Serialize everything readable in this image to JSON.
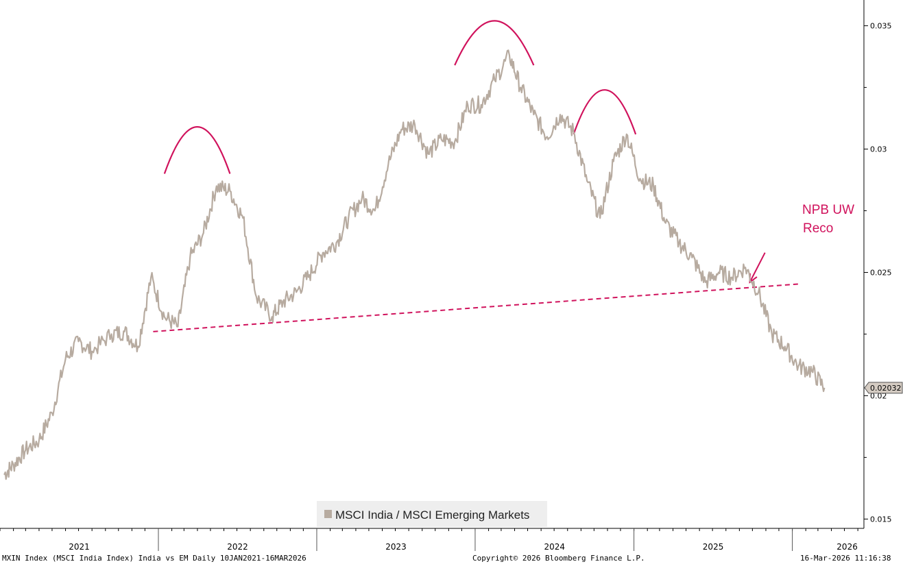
{
  "chart_data": {
    "type": "line",
    "series": [
      {
        "name": "MSCI India / MSCI Emerging Markets",
        "x": [
          "2021-01-10",
          "2021-02-01",
          "2021-03-01",
          "2021-04-01",
          "2021-05-01",
          "2021-06-01",
          "2021-07-01",
          "2021-08-01",
          "2021-09-15",
          "2021-10-15",
          "2021-11-15",
          "2021-12-15",
          "2022-01-15",
          "2022-02-15",
          "2022-03-15",
          "2022-04-15",
          "2022-05-15",
          "2022-06-15",
          "2022-07-15",
          "2022-08-15",
          "2022-09-20",
          "2022-10-15",
          "2022-11-15",
          "2022-12-15",
          "2023-01-15",
          "2023-02-15",
          "2023-03-15",
          "2023-04-15",
          "2023-05-15",
          "2023-06-15",
          "2023-07-15",
          "2023-08-15",
          "2023-09-15",
          "2023-10-15",
          "2023-11-15",
          "2023-12-15",
          "2024-01-15",
          "2024-02-15",
          "2024-03-20",
          "2024-04-15",
          "2024-05-15",
          "2024-06-15",
          "2024-07-15",
          "2024-08-15",
          "2024-09-15",
          "2024-10-15",
          "2024-11-15",
          "2024-12-15",
          "2025-01-15",
          "2025-02-15",
          "2025-03-15",
          "2025-04-15",
          "2025-05-15",
          "2025-06-15",
          "2025-07-15",
          "2025-08-15",
          "2025-09-15",
          "2025-10-15",
          "2025-11-15",
          "2025-12-15",
          "2026-01-15",
          "2026-02-15",
          "2026-03-16"
        ],
        "values": [
          0.0168,
          0.0172,
          0.0178,
          0.0182,
          0.0193,
          0.0215,
          0.0222,
          0.0218,
          0.0225,
          0.0226,
          0.022,
          0.0248,
          0.0232,
          0.0228,
          0.0256,
          0.0266,
          0.0285,
          0.0283,
          0.0272,
          0.024,
          0.0232,
          0.0238,
          0.0242,
          0.0249,
          0.0258,
          0.0262,
          0.0272,
          0.028,
          0.0275,
          0.0294,
          0.0308,
          0.031,
          0.0298,
          0.0304,
          0.0303,
          0.0318,
          0.0318,
          0.0328,
          0.0338,
          0.0325,
          0.0314,
          0.0305,
          0.0314,
          0.0307,
          0.0287,
          0.0272,
          0.0295,
          0.0306,
          0.0288,
          0.0285,
          0.027,
          0.0262,
          0.0256,
          0.0246,
          0.025,
          0.0248,
          0.0252,
          0.0242,
          0.0225,
          0.022,
          0.0212,
          0.021,
          0.02032
        ]
      }
    ],
    "ylim": [
      0.015,
      0.036
    ],
    "yticks": [
      "0.035",
      "0.03",
      "0.025",
      "0.02",
      "0.015"
    ],
    "ytick_values": [
      0.035,
      0.03,
      0.025,
      0.02,
      0.015
    ],
    "xticks": [
      "2021",
      "2022",
      "2023",
      "2024",
      "2025",
      "2026"
    ],
    "xlim": [
      "2021-01-01",
      "2026-06-15"
    ],
    "y_axis_side": "right",
    "grid": false,
    "legend": "bottom-center",
    "last_value_label": "0.02032",
    "colors": {
      "series": "#b7aba0",
      "annotation": "#d0125c",
      "axis": "#000000",
      "legend_bg": "#eeeeee",
      "last_value_bg": "#d4cbc2"
    },
    "annotations": {
      "neckline": {
        "style": "dashed",
        "from": {
          "x": "2021-12-20",
          "y": 0.0226
        },
        "to": {
          "x": "2026-01-15",
          "y": 0.02453
        }
      },
      "shoulder_arcs": [
        {
          "x_start": "2022-01-15",
          "x_peak": "2022-04-01",
          "x_end": "2022-06-15",
          "y_end": 0.029,
          "y_peak": 0.0309
        },
        {
          "x_start": "2023-11-15",
          "x_peak": "2024-02-15",
          "x_end": "2024-05-15",
          "y_end": 0.0334,
          "y_peak": 0.0352
        },
        {
          "x_start": "2024-08-15",
          "x_peak": "2024-10-25",
          "x_end": "2025-01-05",
          "y_end": 0.0306,
          "y_peak": 0.0324
        }
      ],
      "arrow": {
        "from": {
          "x": "2025-10-30",
          "y": 0.0258
        },
        "to": {
          "x": "2025-09-25",
          "y": 0.0246
        }
      },
      "label_lines": [
        "NPB UW",
        "Reco"
      ]
    }
  },
  "footer": {
    "left": "MXIN Index (MSCI India Index) India vs EM Daily 10JAN2021-16MAR2026",
    "center": "Copyright© 2026 Bloomberg Finance L.P.",
    "right": "16-Mar-2026 11:16:38"
  }
}
